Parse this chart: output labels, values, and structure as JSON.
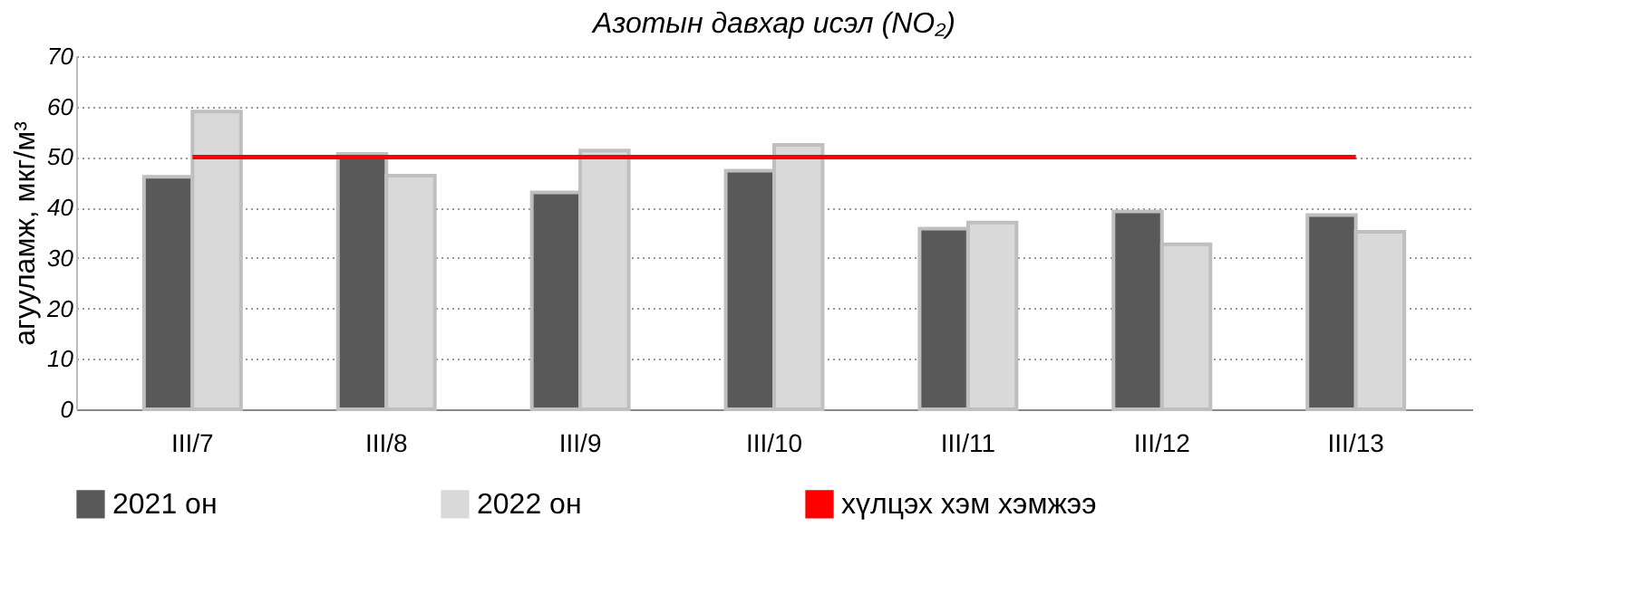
{
  "chart_data": {
    "type": "bar",
    "title": "Азотын давхар исэл (NO₂)",
    "ylabel": "агууламж, мкг/м³",
    "categories": [
      "III/7",
      "III/8",
      "III/9",
      "III/10",
      "III/11",
      "III/12",
      "III/13"
    ],
    "series": [
      {
        "name": "2021 он",
        "color": "#595959",
        "values": [
          46.1,
          50.6,
          43,
          47.3,
          35.8,
          39.2,
          38.5
        ]
      },
      {
        "name": "2022 он",
        "color": "#d9d9d9",
        "values": [
          59,
          46.3,
          51.3,
          52.4,
          37,
          32.7,
          35.2
        ]
      },
      {
        "name": "хүлцэх хэм хэмжээ",
        "type": "line",
        "color": "#ff0000",
        "values": [
          50,
          50,
          50,
          50,
          50,
          50,
          50
        ]
      }
    ],
    "ylim": [
      0,
      70
    ],
    "yticks": [
      0,
      10,
      20,
      30,
      40,
      50,
      60,
      70
    ],
    "grid": "y",
    "legend": "bottom",
    "marker": "none",
    "line_style": "solid"
  }
}
